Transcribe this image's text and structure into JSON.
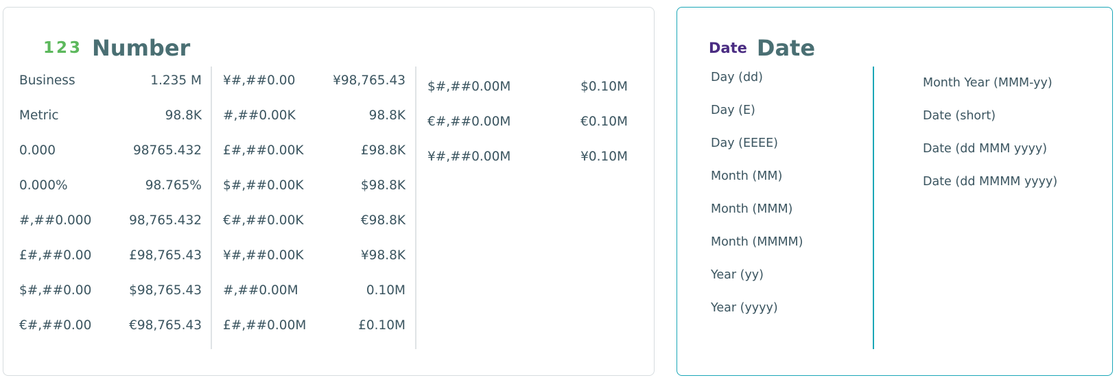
{
  "number": {
    "glyph": "123",
    "title": "Number",
    "columns": [
      [
        {
          "format": "Business",
          "example": "1.235 M"
        },
        {
          "format": "Metric",
          "example": "98.8K"
        },
        {
          "format": "0.000",
          "example": "98765.432"
        },
        {
          "format": "0.000%",
          "example": "98.765%"
        },
        {
          "format": "#,##0.000",
          "example": "98,765.432"
        },
        {
          "format": "£#,##0.00",
          "example": "£98,765.43"
        },
        {
          "format": "$#,##0.00",
          "example": "$98,765.43"
        },
        {
          "format": "€#,##0.00",
          "example": "€98,765.43"
        }
      ],
      [
        {
          "format": "¥#,##0.00",
          "example": "¥98,765.43"
        },
        {
          "format": "#,##0.00K",
          "example": "98.8K"
        },
        {
          "format": "£#,##0.00K",
          "example": "£98.8K"
        },
        {
          "format": "$#,##0.00K",
          "example": "$98.8K"
        },
        {
          "format": "€#,##0.00K",
          "example": "€98.8K"
        },
        {
          "format": "¥#,##0.00K",
          "example": "¥98.8K"
        },
        {
          "format": "#,##0.00M",
          "example": "0.10M"
        },
        {
          "format": "£#,##0.00M",
          "example": "£0.10M"
        }
      ],
      [
        {
          "format": "$#,##0.00M",
          "example": "$0.10M"
        },
        {
          "format": "€#,##0.00M",
          "example": "€0.10M"
        },
        {
          "format": "¥#,##0.00M",
          "example": "¥0.10M"
        }
      ]
    ]
  },
  "date": {
    "glyph": "Date",
    "title": "Date",
    "columns": [
      [
        "Day (dd)",
        "Day (E)",
        "Day (EEEE)",
        "Month (MM)",
        "Month (MMM)",
        "Month (MMMM)",
        "Year (yy)",
        "Year (yyyy)"
      ],
      [
        "Month Year (MMM-yy)",
        "Date (short)",
        "Date (dd MMM yyyy)",
        "Date (dd MMMM yyyy)"
      ]
    ]
  }
}
